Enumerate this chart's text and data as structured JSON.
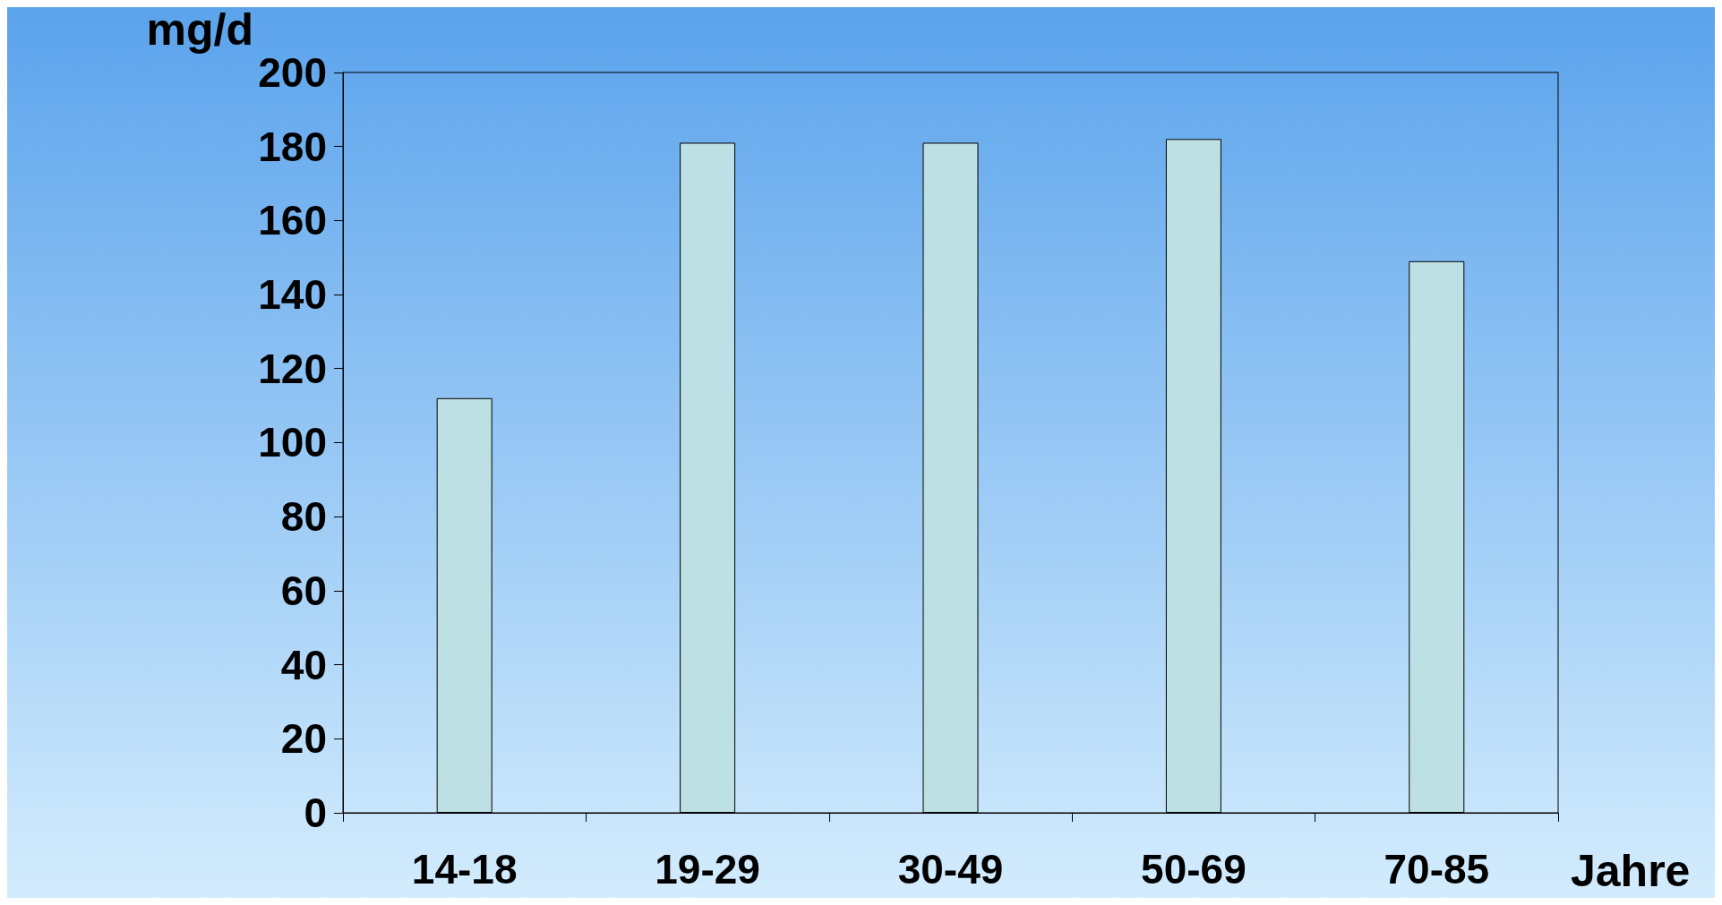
{
  "chart_data": {
    "type": "bar",
    "ylabel": "mg/d",
    "xlabel": "Jahre",
    "categories": [
      "14-18",
      "19-29",
      "30-49",
      "50-69",
      "70-85"
    ],
    "values": [
      112,
      181,
      181,
      182,
      149
    ],
    "color": "#bce0e3",
    "ylim": [
      0,
      200
    ],
    "yticks": [
      0,
      20,
      40,
      60,
      80,
      100,
      120,
      140,
      160,
      180,
      200
    ],
    "grid": false
  }
}
